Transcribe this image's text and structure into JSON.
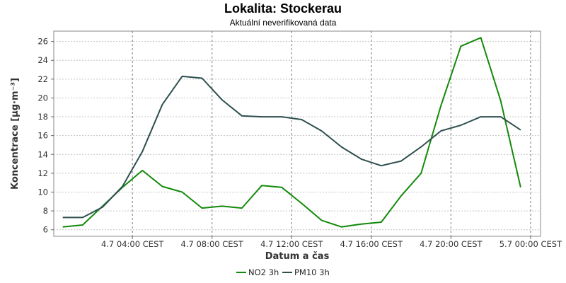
{
  "chart_data": {
    "type": "line",
    "title": "Lokalita: Stockerau",
    "subtitle": "Aktuální neverifikovaná data",
    "xlabel": "Datum a čas",
    "ylabel": "Koncentrace [µg·m⁻³]",
    "x_ticks": [
      "4.7 04:00 CEST",
      "4.7 08:00 CEST",
      "4.7 12:00 CEST",
      "4.7 16:00 CEST",
      "4.7 20:00 CEST",
      "5.7 00:00 CEST"
    ],
    "x_tick_hours": [
      4,
      8,
      12,
      16,
      20,
      24
    ],
    "xlim": [
      0.05,
      24.5
    ],
    "ylim": [
      5.3,
      27.1
    ],
    "y_ticks": [
      6,
      8,
      10,
      12,
      14,
      16,
      18,
      20,
      22,
      24,
      26
    ],
    "grid": true,
    "legend_position": "bottom",
    "x_hours": [
      0.5,
      1.5,
      2.5,
      3.5,
      4.5,
      5.5,
      6.5,
      7.5,
      8.5,
      9.5,
      10.5,
      11.5,
      12.5,
      13.5,
      14.5,
      15.5,
      16.5,
      17.5,
      18.5,
      19.5,
      20.5,
      21.5,
      22.5,
      23.5,
      24.5
    ],
    "series": [
      {
        "name": "NO2 3h",
        "color": "#138a0b",
        "values": [
          6.3,
          6.5,
          8.5,
          10.5,
          12.3,
          10.6,
          10.0,
          8.3,
          8.5,
          8.3,
          10.7,
          10.5,
          8.8,
          7.0,
          6.3,
          6.6,
          6.8,
          9.6,
          12.0,
          19.2,
          25.5,
          26.4,
          19.7,
          10.5,
          null
        ]
      },
      {
        "name": "PM10 3h",
        "color": "#2f4f4f",
        "values": [
          7.3,
          7.3,
          8.4,
          10.6,
          14.3,
          19.3,
          22.3,
          22.1,
          19.8,
          18.1,
          18.0,
          18.0,
          17.7,
          16.5,
          14.8,
          13.5,
          12.8,
          13.3,
          14.8,
          16.5,
          17.1,
          18.0,
          18.0,
          16.6,
          null
        ]
      }
    ]
  }
}
